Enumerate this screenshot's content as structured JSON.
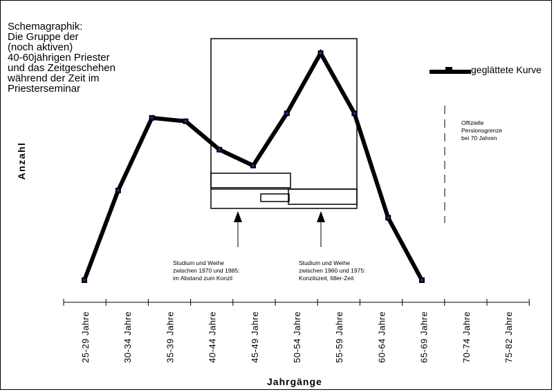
{
  "title_lines": [
    "Schemagraphik:",
    "Die Gruppe der",
    "(noch aktiven)",
    "40-60jährigen Priester",
    "und das Zeitgeschehen",
    "während der Zeit im",
    "Priesterseminar"
  ],
  "legend_label": "geglättete Kurve",
  "annotations": {
    "pension": [
      "Offizielle",
      "Persionsgrenze",
      "bei 70 Jahren"
    ],
    "study_a": [
      "Studium und Weihe",
      "zwischen 1970 und 1985:",
      "im Abstand zum Konzil"
    ],
    "study_b": [
      "Studium und Weihe",
      "zwischen 1960 und 1975:",
      "Konzilszeit, 68er-Zeit"
    ]
  },
  "colors": {
    "line": "#000000",
    "point": "#1a2a8c"
  },
  "chart_data": {
    "type": "line",
    "title": "",
    "xlabel": "Jahrgänge",
    "ylabel": "Anzahl",
    "categories": [
      "25-29 Jahre",
      "30-34 Jahre",
      "35-39 Jahre",
      "40-44 Jahre",
      "45-49 Jahre",
      "50-54 Jahre",
      "55-59 Jahre",
      "60-64 Jahre",
      "65-69 Jahre",
      "70-74 Jahre",
      "75-82 Jahre"
    ],
    "series": [
      {
        "name": "geglättete Kurve",
        "values": [
          0,
          39.5,
          71.5,
          70,
          57.5,
          50.5,
          73.5,
          100,
          73.5,
          27.5,
          0
        ]
      }
    ],
    "ylim": [
      0,
      100
    ],
    "grid": false,
    "y_ticks_shown": false
  }
}
